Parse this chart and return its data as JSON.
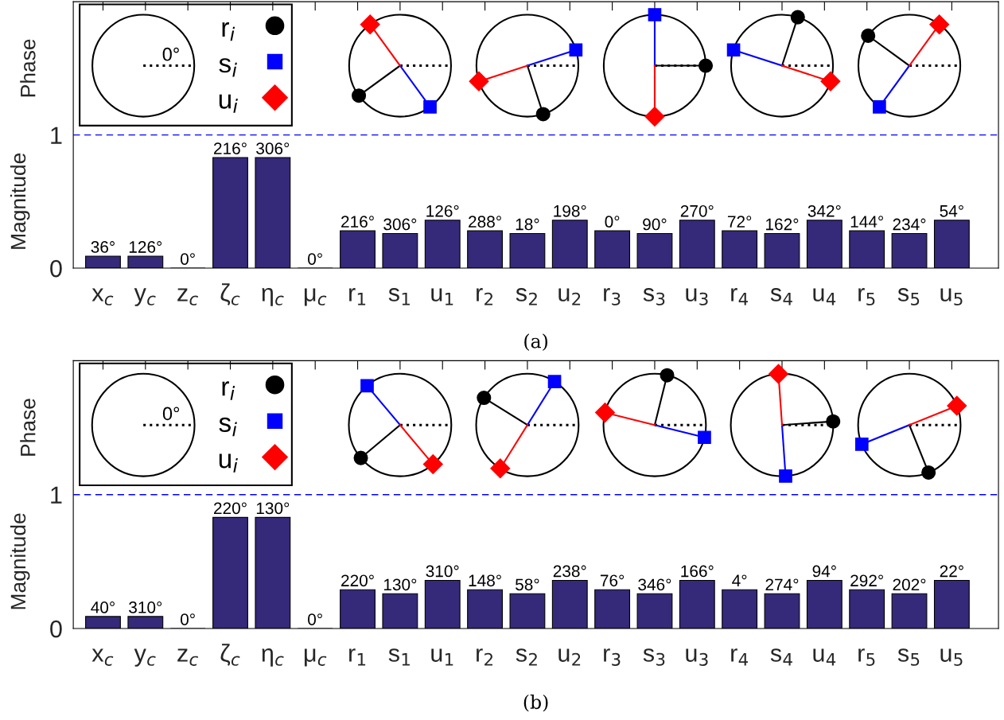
{
  "chart_data": [
    {
      "type": "bar",
      "categories": [
        "x$_{c}$",
        "y$_{c}$",
        "z$_{c}$",
        "ζ$_{c}$",
        "η$_{c}$",
        "μ$_{c}$",
        "r$_{1}$",
        "s$_{1}$",
        "u$_{1}$",
        "r$_{2}$",
        "s$_{2}$",
        "u$_{2}$",
        "r$_{3}$",
        "s$_{3}$",
        "u$_{3}$",
        "r$_{4}$",
        "s$_{4}$",
        "u$_{4}$",
        "r$_{5}$",
        "s$_{5}$",
        "u$_{5}$"
      ],
      "values": [
        0.09,
        0.09,
        0,
        0.83,
        0.83,
        0,
        0.28,
        0.26,
        0.36,
        0.28,
        0.26,
        0.36,
        0.28,
        0.26,
        0.36,
        0.28,
        0.26,
        0.36,
        0.28,
        0.26,
        0.36
      ],
      "color": "#35297a",
      "ylabel": "Magnitude",
      "ylim": [
        0,
        2
      ],
      "yticks": [
        0,
        1
      ],
      "ref_lines": [
        {
          "axis": "y",
          "value": 1,
          "color": "#0000ff",
          "line_style": "dashed"
        }
      ],
      "annotations": [
        "Phase",
        "(a)",
        "0°",
        "r$_{i}$",
        "s$_{i}$",
        "u$_{i}$",
        {
          "text": "36°",
          "x": "x$_{c}$",
          "y": 0.09
        },
        {
          "text": "126°",
          "x": "y$_{c}$",
          "y": 0.09
        },
        {
          "text": "0°",
          "x": "z$_{c}$",
          "y": 0
        },
        {
          "text": "216°",
          "x": "ζ$_{c}$",
          "y": 0.83
        },
        {
          "text": "306°",
          "x": "η$_{c}$",
          "y": 0.83
        },
        {
          "text": "0°",
          "x": "μ$_{c}$",
          "y": 0
        },
        {
          "text": "216°",
          "x": "r$_{1}$",
          "y": 0.28
        },
        {
          "text": "306°",
          "x": "s$_{1}$",
          "y": 0.26
        },
        {
          "text": "126°",
          "x": "u$_{1}$",
          "y": 0.36
        },
        {
          "text": "288°",
          "x": "r$_{2}$",
          "y": 0.28
        },
        {
          "text": "18°",
          "x": "s$_{2}$",
          "y": 0.26
        },
        {
          "text": "198°",
          "x": "u$_{2}$",
          "y": 0.36
        },
        {
          "text": "0°",
          "x": "r$_{3}$",
          "y": 0.28
        },
        {
          "text": "90°",
          "x": "s$_{3}$",
          "y": 0.26
        },
        {
          "text": "270°",
          "x": "u$_{3}$",
          "y": 0.36
        },
        {
          "text": "72°",
          "x": "r$_{4}$",
          "y": 0.28
        },
        {
          "text": "162°",
          "x": "s$_{4}$",
          "y": 0.26
        },
        {
          "text": "342°",
          "x": "u$_{4}$",
          "y": 0.36
        },
        {
          "text": "144°",
          "x": "r$_{5}$",
          "y": 0.28
        },
        {
          "text": "234°",
          "x": "s$_{5}$",
          "y": 0.26
        },
        {
          "text": "54°",
          "x": "u$_{5}$",
          "y": 0.36
        }
      ]
    },
    {
      "type": "bar",
      "categories": [
        "x$_{c}$",
        "y$_{c}$",
        "z$_{c}$",
        "ζ$_{c}$",
        "η$_{c}$",
        "μ$_{c}$",
        "r$_{1}$",
        "s$_{1}$",
        "u$_{1}$",
        "r$_{2}$",
        "s$_{2}$",
        "u$_{2}$",
        "r$_{3}$",
        "s$_{3}$",
        "u$_{3}$",
        "r$_{4}$",
        "s$_{4}$",
        "u$_{4}$",
        "r$_{5}$",
        "s$_{5}$",
        "u$_{5}$"
      ],
      "values": [
        0.09,
        0.09,
        0,
        0.83,
        0.83,
        0,
        0.29,
        0.26,
        0.36,
        0.29,
        0.26,
        0.36,
        0.29,
        0.26,
        0.36,
        0.29,
        0.26,
        0.36,
        0.29,
        0.26,
        0.36
      ],
      "color": "#35297a",
      "ylabel": "Magnitude",
      "ylim": [
        0,
        2
      ],
      "yticks": [
        0,
        1
      ],
      "ref_lines": [
        {
          "axis": "y",
          "value": 1,
          "color": "#0000ff",
          "line_style": "dashed"
        }
      ],
      "annotations": [
        "Phase",
        "(b)",
        "0°",
        "r$_{i}$",
        "s$_{i}$",
        "u$_{i}$",
        {
          "text": "40°",
          "x": "x$_{c}$",
          "y": 0.09
        },
        {
          "text": "310°",
          "x": "y$_{c}$",
          "y": 0.09
        },
        {
          "text": "0°",
          "x": "z$_{c}$",
          "y": 0
        },
        {
          "text": "220°",
          "x": "ζ$_{c}$",
          "y": 0.83
        },
        {
          "text": "130°",
          "x": "η$_{c}$",
          "y": 0.83
        },
        {
          "text": "0°",
          "x": "μ$_{c}$",
          "y": 0
        },
        {
          "text": "220°",
          "x": "r$_{1}$",
          "y": 0.29
        },
        {
          "text": "130°",
          "x": "s$_{1}$",
          "y": 0.26
        },
        {
          "text": "310°",
          "x": "u$_{1}$",
          "y": 0.36
        },
        {
          "text": "148°",
          "x": "r$_{2}$",
          "y": 0.29
        },
        {
          "text": "58°",
          "x": "s$_{2}$",
          "y": 0.26
        },
        {
          "text": "238°",
          "x": "u$_{2}$",
          "y": 0.36
        },
        {
          "text": "76°",
          "x": "r$_{3}$",
          "y": 0.29
        },
        {
          "text": "346°",
          "x": "s$_{3}$",
          "y": 0.26
        },
        {
          "text": "166°",
          "x": "u$_{3}$",
          "y": 0.36
        },
        {
          "text": "4°",
          "x": "r$_{4}$",
          "y": 0.29
        },
        {
          "text": "274°",
          "x": "s$_{4}$",
          "y": 0.26
        },
        {
          "text": "94°",
          "x": "u$_{4}$",
          "y": 0.36
        },
        {
          "text": "292°",
          "x": "r$_{5}$",
          "y": 0.29
        },
        {
          "text": "202°",
          "x": "s$_{5}$",
          "y": 0.26
        },
        {
          "text": "22°",
          "x": "u$_{5}$",
          "y": 0.36
        }
      ]
    }
  ]
}
